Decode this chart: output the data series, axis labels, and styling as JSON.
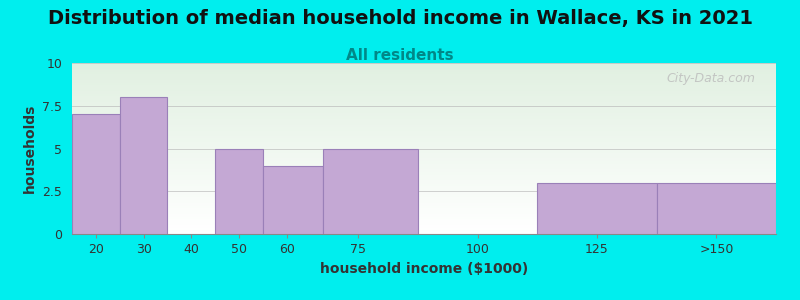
{
  "title": "Distribution of median household income in Wallace, KS in 2021",
  "subtitle": "All residents",
  "xlabel": "household income ($1000)",
  "ylabel": "households",
  "background_color": "#00EEEE",
  "bar_color": "#C4A8D4",
  "bar_edge_color": "#9A80B8",
  "bar_linewidth": 0.8,
  "categories": [
    "20",
    "30",
    "40",
    "50",
    "60",
    "75",
    "100",
    "125",
    ">150"
  ],
  "values": [
    7,
    8,
    0,
    5,
    4,
    5,
    0,
    3,
    3
  ],
  "bin_edges": [
    15,
    25,
    35,
    45,
    55,
    67.5,
    87.5,
    112.5,
    137.5,
    162.5
  ],
  "xtick_positions": [
    20,
    30,
    40,
    50,
    60,
    75,
    100,
    125,
    150
  ],
  "xtick_labels": [
    "20",
    "30",
    "40",
    "50",
    "60",
    "75",
    "100",
    "125",
    ">150"
  ],
  "ylim": [
    0,
    10
  ],
  "yticks": [
    0,
    2.5,
    5,
    7.5,
    10
  ],
  "title_fontsize": 14,
  "subtitle_fontsize": 11,
  "axis_label_fontsize": 10,
  "tick_fontsize": 9,
  "watermark": "City-Data.com",
  "grid_color": "#bbbbbb",
  "plot_bg_color_top": "#e8f4e8",
  "plot_bg_color_bottom": "#f8fff8"
}
